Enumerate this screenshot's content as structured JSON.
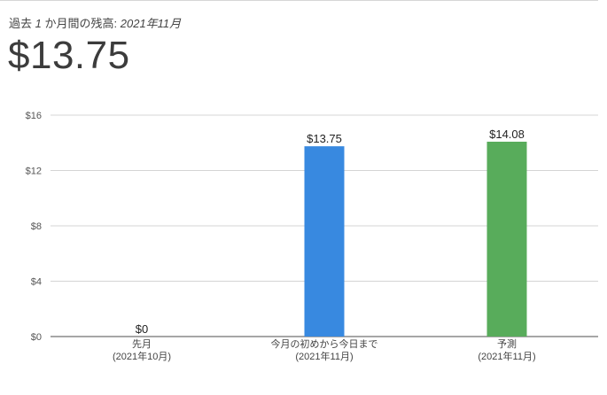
{
  "header": {
    "subtitle_prefix": "過去",
    "subtitle_num": "1",
    "subtitle_mid": "か月間の残高:",
    "subtitle_date": "2021年11月",
    "balance": "$13.75"
  },
  "chart_data": {
    "type": "bar",
    "title": "",
    "xlabel": "",
    "ylabel": "",
    "ylim": [
      0,
      16
    ],
    "yticks": [
      {
        "value": 0,
        "label": "$0"
      },
      {
        "value": 4,
        "label": "$4"
      },
      {
        "value": 8,
        "label": "$8"
      },
      {
        "value": 12,
        "label": "$12"
      },
      {
        "value": 16,
        "label": "$16"
      }
    ],
    "grid": true,
    "categories": [
      {
        "line1": "先月",
        "line2": "(2021年10月)"
      },
      {
        "line1": "今月の初めから今日まで",
        "line2": "(2021年11月)"
      },
      {
        "line1": "予測",
        "line2": "(2021年11月)"
      }
    ],
    "values": [
      0,
      13.75,
      14.08
    ],
    "value_labels": [
      "$0",
      "$13.75",
      "$14.08"
    ],
    "colors": [
      "#3889e0",
      "#3889e0",
      "#58ac5b"
    ]
  }
}
